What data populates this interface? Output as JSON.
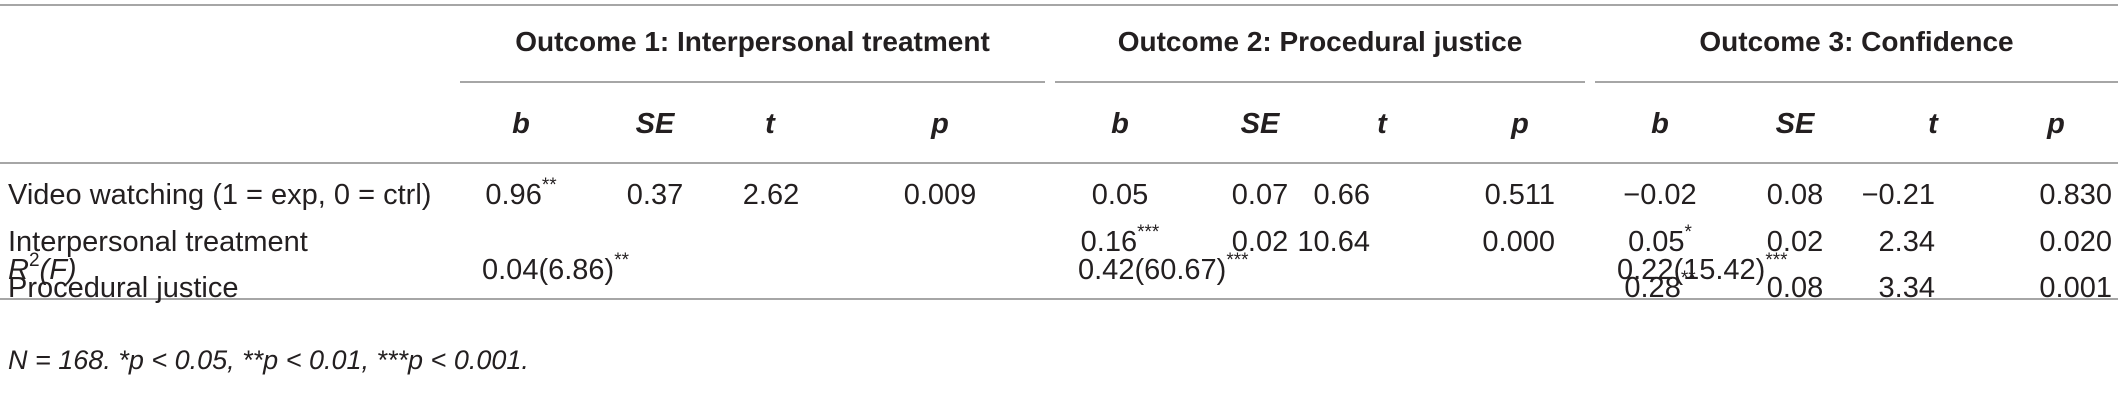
{
  "table": {
    "groups": [
      {
        "label": "Outcome 1: Interpersonal treatment"
      },
      {
        "label": "Outcome 2: Procedural justice"
      },
      {
        "label": "Outcome 3: Confidence"
      }
    ],
    "subheaders": [
      "b",
      "SE",
      "t",
      "p",
      "b",
      "SE",
      "t",
      "p",
      "b",
      "SE",
      "t",
      "p"
    ],
    "rows": [
      {
        "label": "Video watching (1 = exp, 0 = ctrl)",
        "cells": [
          {
            "v": "0.96",
            "sig": "**"
          },
          {
            "v": "0.37",
            "sig": ""
          },
          {
            "v": "2.62",
            "sig": ""
          },
          {
            "v": "0.009",
            "sig": ""
          },
          {
            "v": "0.05",
            "sig": ""
          },
          {
            "v": "0.07",
            "sig": ""
          },
          {
            "v": "0.66",
            "sig": ""
          },
          {
            "v": "0.511",
            "sig": ""
          },
          {
            "v": "−0.02",
            "sig": ""
          },
          {
            "v": "0.08",
            "sig": ""
          },
          {
            "v": "−0.21",
            "sig": ""
          },
          {
            "v": "0.830",
            "sig": ""
          }
        ]
      },
      {
        "label": "Interpersonal treatment",
        "cells": [
          {
            "v": "",
            "sig": ""
          },
          {
            "v": "",
            "sig": ""
          },
          {
            "v": "",
            "sig": ""
          },
          {
            "v": "",
            "sig": ""
          },
          {
            "v": "0.16",
            "sig": "***"
          },
          {
            "v": "0.02",
            "sig": ""
          },
          {
            "v": "10.64",
            "sig": ""
          },
          {
            "v": "0.000",
            "sig": ""
          },
          {
            "v": "0.05",
            "sig": "*"
          },
          {
            "v": "0.02",
            "sig": ""
          },
          {
            "v": "2.34",
            "sig": ""
          },
          {
            "v": "0.020",
            "sig": ""
          }
        ]
      },
      {
        "label": "Procedural justice",
        "cells": [
          {
            "v": "",
            "sig": ""
          },
          {
            "v": "",
            "sig": ""
          },
          {
            "v": "",
            "sig": ""
          },
          {
            "v": "",
            "sig": ""
          },
          {
            "v": "",
            "sig": ""
          },
          {
            "v": "",
            "sig": ""
          },
          {
            "v": "",
            "sig": ""
          },
          {
            "v": "",
            "sig": ""
          },
          {
            "v": "0.28",
            "sig": "**"
          },
          {
            "v": "0.08",
            "sig": ""
          },
          {
            "v": "3.34",
            "sig": ""
          },
          {
            "v": "0.001",
            "sig": ""
          }
        ]
      }
    ],
    "r2_row": {
      "label_main": "R",
      "label_sup": "2",
      "label_rest": "(F)",
      "values": [
        {
          "v": "0.04(6.86)",
          "sig": "**"
        },
        {
          "v": "0.42(60.67)",
          "sig": "***"
        },
        {
          "v": "0.22(15.42)",
          "sig": "***"
        }
      ]
    },
    "note": "N = 168. *p < 0.05, **p < 0.01, ***p < 0.001."
  }
}
